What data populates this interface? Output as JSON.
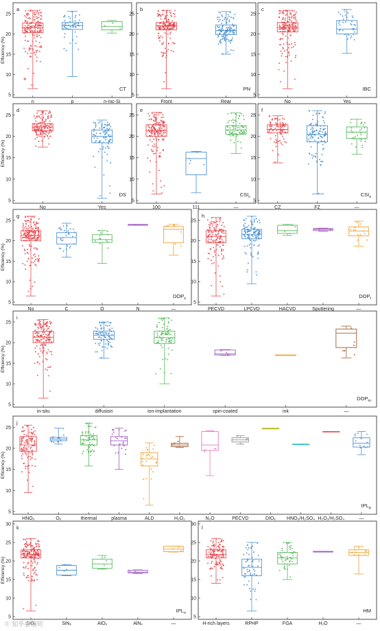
{
  "figure": {
    "watermark": "⓪ 知乎@朋珂"
  },
  "colors": [
    "#e8474c",
    "#4a90d0",
    "#55b85a",
    "#a05cc0",
    "#f0a030",
    "#9c5a30",
    "#e878c0",
    "#909090",
    "#c0c030",
    "#30c0d0"
  ],
  "chart_data": [
    {
      "id": "a",
      "type": "box",
      "panel_letter": "a",
      "panel_label": "CT",
      "ylabel": "Efficiency (%)",
      "ylim": [
        5,
        27
      ],
      "yticks": [
        5,
        10,
        15,
        20,
        25
      ],
      "categories": [
        "n",
        "p",
        "n-mc-Si"
      ],
      "boxes": [
        {
          "min": 6.5,
          "q1": 20.3,
          "median": 21.5,
          "q3": 22.7,
          "max": 25.8,
          "n": 170
        },
        {
          "min": 9.5,
          "q1": 21.1,
          "median": 22.0,
          "q3": 22.8,
          "max": 25.6,
          "n": 50
        },
        {
          "min": 20.2,
          "q1": 21.0,
          "median": 21.8,
          "q3": 23.0,
          "max": 23.3,
          "n": 3
        }
      ]
    },
    {
      "id": "b",
      "type": "box",
      "panel_letter": "b",
      "panel_label": "PN",
      "ylabel": "",
      "ylim": [
        5,
        27
      ],
      "yticks": [
        5,
        10,
        15,
        20,
        25
      ],
      "categories": [
        "Front",
        "Rear"
      ],
      "boxes": [
        {
          "min": 6.5,
          "q1": 21.0,
          "median": 22.0,
          "q3": 22.8,
          "max": 25.8,
          "n": 160
        },
        {
          "min": 15.0,
          "q1": 19.8,
          "median": 20.8,
          "q3": 22.2,
          "max": 25.5,
          "n": 120
        }
      ]
    },
    {
      "id": "c",
      "type": "box",
      "panel_letter": "c",
      "panel_label": "IBC",
      "ylabel": "",
      "ylim": [
        5,
        27
      ],
      "yticks": [
        5,
        10,
        15,
        20,
        25
      ],
      "categories": [
        "No",
        "Yes"
      ],
      "boxes": [
        {
          "min": 6.5,
          "q1": 20.5,
          "median": 21.6,
          "q3": 22.8,
          "max": 25.8,
          "n": 180
        },
        {
          "min": 15.2,
          "q1": 20.0,
          "median": 21.2,
          "q3": 23.3,
          "max": 26.0,
          "n": 35
        }
      ]
    },
    {
      "id": "d",
      "type": "box",
      "panel_letter": "d",
      "panel_label": "DS",
      "ylabel": "Efficiency (%)",
      "ylim": [
        5,
        27
      ],
      "yticks": [
        5,
        10,
        15,
        20,
        25
      ],
      "categories": [
        "No",
        "Yes"
      ],
      "boxes": [
        {
          "min": 17.5,
          "q1": 21.3,
          "median": 22.2,
          "q3": 23.0,
          "max": 26.0,
          "n": 140
        },
        {
          "min": 5.5,
          "q1": 18.5,
          "median": 20.0,
          "q3": 21.5,
          "max": 23.8,
          "n": 90
        }
      ]
    },
    {
      "id": "e",
      "type": "box",
      "panel_letter": "e",
      "panel_label": "CSI_c",
      "ylabel": "",
      "ylim": [
        5,
        27
      ],
      "yticks": [
        5,
        10,
        15,
        20,
        25
      ],
      "categories": [
        "100",
        "111",
        "—"
      ],
      "boxes": [
        {
          "min": 6.5,
          "q1": 20.0,
          "median": 21.3,
          "q3": 22.7,
          "max": 25.6,
          "n": 160
        },
        {
          "min": 6.8,
          "q1": 11.0,
          "median": 14.8,
          "q3": 16.3,
          "max": 16.5,
          "n": 5
        },
        {
          "min": 16.0,
          "q1": 20.5,
          "median": 21.5,
          "q3": 22.5,
          "max": 25.5,
          "n": 70
        }
      ]
    },
    {
      "id": "f",
      "type": "box",
      "panel_letter": "f",
      "panel_label": "CSI_s",
      "ylabel": "",
      "ylim": [
        5,
        27
      ],
      "yticks": [
        5,
        10,
        15,
        20,
        25
      ],
      "categories": [
        "CZ",
        "FZ",
        "—"
      ],
      "boxes": [
        {
          "min": 13.8,
          "q1": 20.8,
          "median": 21.6,
          "q3": 22.7,
          "max": 24.8,
          "n": 90
        },
        {
          "min": 6.5,
          "q1": 18.7,
          "median": 20.5,
          "q3": 22.5,
          "max": 26.0,
          "n": 110
        },
        {
          "min": 15.8,
          "q1": 19.5,
          "median": 21.0,
          "q3": 22.2,
          "max": 24.0,
          "n": 30
        }
      ]
    },
    {
      "id": "g",
      "type": "box",
      "panel_letter": "g",
      "panel_label": "DOP_s",
      "ylabel": "Efficiency (%)",
      "ylim": [
        5,
        27
      ],
      "yticks": [
        5,
        10,
        15,
        20,
        25
      ],
      "categories": [
        "No",
        "C",
        "O",
        "N",
        "—"
      ],
      "boxes": [
        {
          "min": 6.5,
          "q1": 20.0,
          "median": 21.3,
          "q3": 22.5,
          "max": 26.0,
          "n": 190
        },
        {
          "min": 16.0,
          "q1": 19.2,
          "median": 20.8,
          "q3": 22.0,
          "max": 24.3,
          "n": 30
        },
        {
          "min": 14.5,
          "q1": 19.6,
          "median": 20.3,
          "q3": 21.5,
          "max": 22.5,
          "n": 12
        },
        {
          "min": 23.8,
          "q1": 23.8,
          "median": 23.9,
          "q3": 24.0,
          "max": 24.0,
          "n": 2
        },
        {
          "min": 16.5,
          "q1": 19.5,
          "median": 22.8,
          "q3": 23.5,
          "max": 24.0,
          "n": 8
        }
      ]
    },
    {
      "id": "h",
      "type": "box",
      "panel_letter": "h",
      "panel_label": "DOP_t",
      "ylabel": "",
      "ylim": [
        5,
        27
      ],
      "yticks": [
        5,
        10,
        15,
        20,
        25
      ],
      "categories": [
        "PECVD",
        "LPCVD",
        "HACVD",
        "Sputtering",
        "—"
      ],
      "boxes": [
        {
          "min": 6.5,
          "q1": 19.5,
          "median": 21.0,
          "q3": 22.5,
          "max": 25.7,
          "n": 130
        },
        {
          "min": 9.5,
          "q1": 20.5,
          "median": 21.6,
          "q3": 22.8,
          "max": 26.0,
          "n": 120
        },
        {
          "min": 21.3,
          "q1": 21.8,
          "median": 22.5,
          "q3": 23.8,
          "max": 24.0,
          "n": 4
        },
        {
          "min": 22.3,
          "q1": 22.5,
          "median": 22.8,
          "q3": 23.0,
          "max": 23.1,
          "n": 3
        },
        {
          "min": 18.7,
          "q1": 21.2,
          "median": 22.4,
          "q3": 23.4,
          "max": 24.8,
          "n": 12
        }
      ]
    },
    {
      "id": "i",
      "type": "box",
      "panel_letter": "i",
      "panel_label": "DOP_m",
      "ylabel": "Efficiency (%)",
      "ylim": [
        5,
        27
      ],
      "yticks": [
        5,
        10,
        15,
        20,
        25
      ],
      "categories": [
        "in-situ",
        "diffusion",
        "ion-implantation",
        "spin-coated",
        "ink",
        "—"
      ],
      "boxes": [
        {
          "min": 6.5,
          "q1": 20.0,
          "median": 21.3,
          "q3": 22.7,
          "max": 25.6,
          "n": 160
        },
        {
          "min": 16.2,
          "q1": 20.8,
          "median": 21.8,
          "q3": 22.8,
          "max": 25.0,
          "n": 80
        },
        {
          "min": 10.0,
          "q1": 19.8,
          "median": 21.2,
          "q3": 22.8,
          "max": 26.0,
          "n": 80
        },
        {
          "min": 16.9,
          "q1": 17.0,
          "median": 17.3,
          "q3": 18.2,
          "max": 18.3,
          "n": 3
        },
        {
          "min": 17.0,
          "q1": 17.0,
          "median": 17.0,
          "q3": 17.0,
          "max": 17.0,
          "n": 1
        },
        {
          "min": 16.3,
          "q1": 18.8,
          "median": 22.3,
          "q3": 23.3,
          "max": 24.0,
          "n": 7
        }
      ]
    },
    {
      "id": "j",
      "type": "box",
      "panel_letter": "j",
      "panel_label": "IPL_p",
      "ylabel": "Efficiency (%)",
      "ylim": [
        5,
        27
      ],
      "yticks": [
        5,
        10,
        15,
        20,
        25
      ],
      "categories": [
        "HNO_x",
        "O_x",
        "thermal",
        "plasma",
        "ALD",
        "H2O2",
        "N2O",
        "PECVD",
        "DIO_x",
        "HNO3/H2SO4",
        "H2O2/H2SO4",
        "—"
      ],
      "categories_display": [
        "HNOₓ",
        "Oₓ",
        "thermal",
        "plasma",
        "ALD",
        "H₂O₂",
        "N₂O",
        "PECVD",
        "DIOₓ",
        "HNO₃/H₂SO₄",
        "H₂O₂/H₂SO₄",
        "—"
      ],
      "boxes": [
        {
          "min": 9.5,
          "q1": 19.3,
          "median": 20.8,
          "q3": 22.8,
          "max": 25.5,
          "n": 110
        },
        {
          "min": 21.0,
          "q1": 21.8,
          "median": 22.2,
          "q3": 22.6,
          "max": 24.8,
          "n": 14
        },
        {
          "min": 15.8,
          "q1": 20.8,
          "median": 22.0,
          "q3": 23.0,
          "max": 26.0,
          "n": 60
        },
        {
          "min": 15.0,
          "q1": 20.8,
          "median": 21.8,
          "q3": 22.8,
          "max": 24.8,
          "n": 25
        },
        {
          "min": 6.5,
          "q1": 15.8,
          "median": 17.5,
          "q3": 19.0,
          "max": 21.3,
          "n": 25
        },
        {
          "min": 20.2,
          "q1": 20.4,
          "median": 20.8,
          "q3": 21.2,
          "max": 22.8,
          "n": 5
        },
        {
          "min": 13.5,
          "q1": 19.5,
          "median": 20.8,
          "q3": 24.0,
          "max": 24.2,
          "n": 5
        },
        {
          "min": 21.0,
          "q1": 21.5,
          "median": 22.0,
          "q3": 22.5,
          "max": 23.0,
          "n": 4
        },
        {
          "min": 24.6,
          "q1": 24.6,
          "median": 24.7,
          "q3": 24.8,
          "max": 24.8,
          "n": 2
        },
        {
          "min": 21.0,
          "q1": 21.0,
          "median": 21.0,
          "q3": 21.0,
          "max": 21.0,
          "n": 1
        },
        {
          "min": 23.9,
          "q1": 23.9,
          "median": 24.0,
          "q3": 24.0,
          "max": 24.0,
          "n": 1
        },
        {
          "min": 18.5,
          "q1": 20.3,
          "median": 21.2,
          "q3": 22.5,
          "max": 24.0,
          "n": 12
        }
      ]
    },
    {
      "id": "k",
      "type": "box",
      "panel_letter": "k",
      "panel_label": "IPL_n",
      "ylabel": "Efficiency (%)",
      "ylim": [
        5,
        30
      ],
      "yticks": [
        5,
        10,
        15,
        20,
        25,
        30
      ],
      "categories": [
        "SiO_x",
        "SiN_x",
        "AlO_x",
        "AlN_x",
        "—"
      ],
      "categories_display": [
        "SiOₓ",
        "SiNₓ",
        "AlOₓ",
        "AlNₓ",
        "—"
      ],
      "boxes": [
        {
          "min": 6.5,
          "q1": 20.8,
          "median": 21.8,
          "q3": 23.0,
          "max": 26.0,
          "n": 180
        },
        {
          "min": 16.0,
          "q1": 16.2,
          "median": 17.5,
          "q3": 18.8,
          "max": 19.0,
          "n": 4
        },
        {
          "min": 17.8,
          "q1": 18.0,
          "median": 19.2,
          "q3": 20.5,
          "max": 21.5,
          "n": 4
        },
        {
          "min": 16.6,
          "q1": 16.8,
          "median": 17.0,
          "q3": 17.5,
          "max": 17.6,
          "n": 3
        },
        {
          "min": 22.4,
          "q1": 22.5,
          "median": 23.2,
          "q3": 24.0,
          "max": 24.0,
          "n": 3
        }
      ]
    },
    {
      "id": "l",
      "type": "box",
      "panel_letter": "l",
      "panel_label": "HM",
      "ylabel": "",
      "ylim": [
        5,
        30
      ],
      "yticks": [
        5,
        10,
        15,
        20,
        25,
        30
      ],
      "categories": [
        "H-rich layers",
        "RPHP",
        "FGA",
        "H2O",
        "—"
      ],
      "categories_display": [
        "H-rich layers",
        "RPHP",
        "FGA",
        "H₂O",
        "—"
      ],
      "boxes": [
        {
          "min": 14.0,
          "q1": 20.8,
          "median": 21.8,
          "q3": 23.0,
          "max": 26.0,
          "n": 120
        },
        {
          "min": 6.5,
          "q1": 16.0,
          "median": 18.3,
          "q3": 20.5,
          "max": 25.0,
          "n": 60
        },
        {
          "min": 15.0,
          "q1": 19.2,
          "median": 20.8,
          "q3": 22.3,
          "max": 25.0,
          "n": 45
        },
        {
          "min": 22.4,
          "q1": 22.4,
          "median": 22.5,
          "q3": 22.6,
          "max": 22.6,
          "n": 1
        },
        {
          "min": 16.5,
          "q1": 21.5,
          "median": 22.3,
          "q3": 23.0,
          "max": 24.0,
          "n": 9
        }
      ]
    }
  ]
}
